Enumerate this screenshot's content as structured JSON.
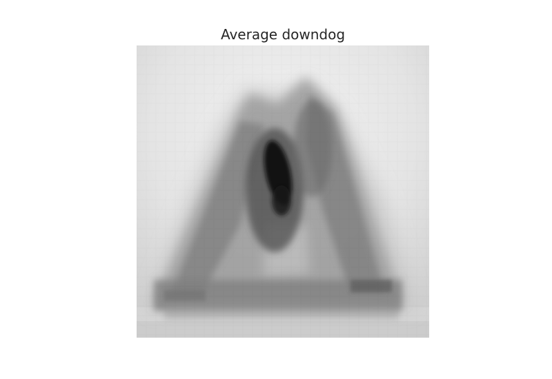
{
  "figure": {
    "title": "Average downdog"
  },
  "image": {
    "colormap": "gray",
    "description_icon": "pose-average-image"
  }
}
